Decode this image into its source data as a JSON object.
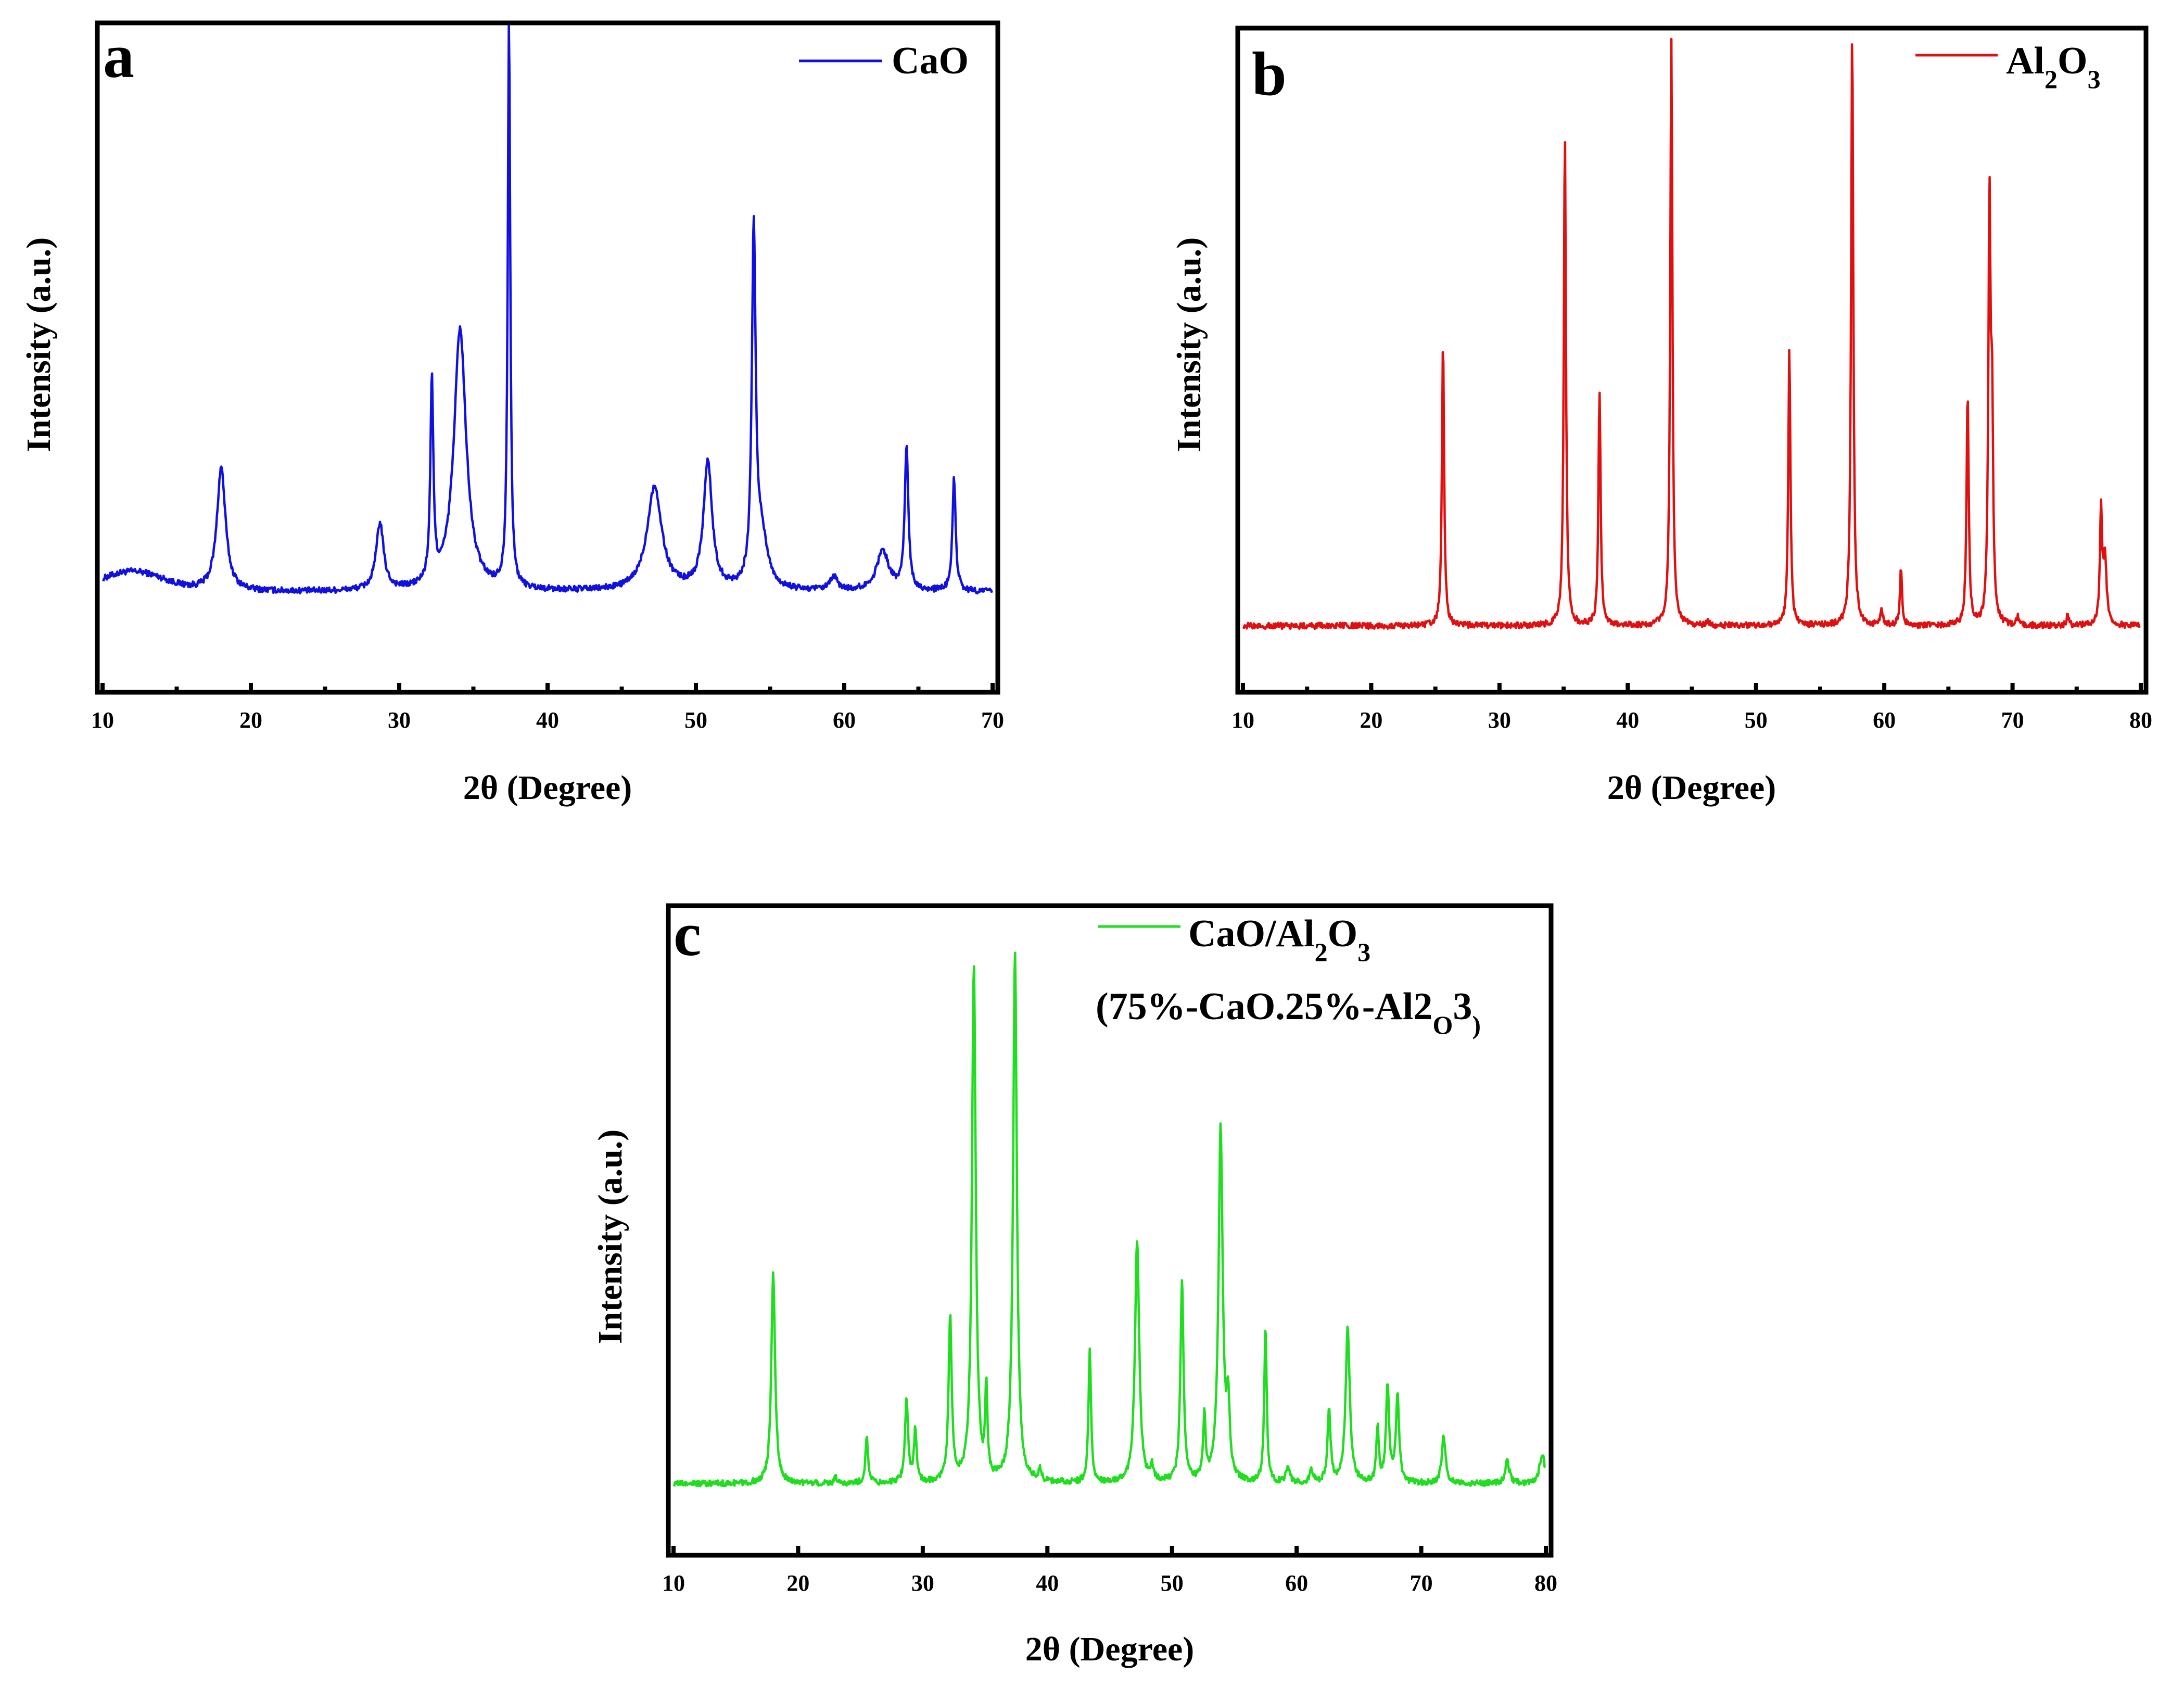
{
  "figure": {
    "panels": [
      "a",
      "b",
      "c"
    ]
  },
  "chart_data": [
    {
      "type": "line",
      "panel_label": "a",
      "xlabel": "2θ (Degree)",
      "ylabel": "Intensity (a.u.)",
      "xlim": [
        10,
        70
      ],
      "ylim": [
        0,
        100
      ],
      "major_ticks": [
        10,
        20,
        30,
        40,
        50,
        60,
        70
      ],
      "minor_ticks": [
        15,
        25,
        35,
        45,
        55,
        65
      ],
      "tick_labels": [
        "10",
        "20",
        "30",
        "40",
        "50",
        "60",
        "70"
      ],
      "series": [
        {
          "name": "CaO",
          "color": "#1010e0",
          "baseline": 15,
          "background_hump": {
            "center": 12,
            "height": 3,
            "width": 3
          },
          "peaks": [
            {
              "x": 18.0,
              "h": 18.5,
              "w": 0.35
            },
            {
              "x": 28.7,
              "h": 10,
              "w": 0.3
            },
            {
              "x": 32.2,
              "h": 30,
              "w": 0.12
            },
            {
              "x": 34.1,
              "h": 39,
              "w": 0.5
            },
            {
              "x": 37.4,
              "h": 85,
              "w": 0.1
            },
            {
              "x": 47.2,
              "h": 15.5,
              "w": 0.6
            },
            {
              "x": 50.8,
              "h": 19,
              "w": 0.35
            },
            {
              "x": 53.9,
              "h": 52,
              "w": 0.15
            },
            {
              "x": 54.4,
              "h": 8,
              "w": 0.5
            },
            {
              "x": 59.3,
              "h": 2,
              "w": 0.3
            },
            {
              "x": 62.6,
              "h": 6,
              "w": 0.5
            },
            {
              "x": 64.2,
              "h": 21,
              "w": 0.15
            },
            {
              "x": 67.4,
              "h": 17,
              "w": 0.13
            }
          ],
          "legend": {
            "label": "CaO",
            "subscripts": [],
            "placement": "top-right"
          }
        }
      ]
    },
    {
      "type": "line",
      "panel_label": "b",
      "xlabel": "2θ (Degree)",
      "ylabel": "Intensity (a.u.)",
      "xlim": [
        10,
        80
      ],
      "ylim": [
        0,
        100
      ],
      "major_ticks": [
        10,
        20,
        30,
        40,
        50,
        60,
        70,
        80
      ],
      "minor_ticks": [
        15,
        25,
        35,
        45,
        55,
        65,
        75
      ],
      "tick_labels": [
        "10",
        "20",
        "30",
        "40",
        "50",
        "60",
        "70",
        "80"
      ],
      "series": [
        {
          "name": "Al2O3",
          "color": "#e01010",
          "baseline": 10,
          "background_hump": null,
          "peaks": [
            {
              "x": 25.6,
              "h": 43,
              "w": 0.1
            },
            {
              "x": 35.1,
              "h": 74,
              "w": 0.1
            },
            {
              "x": 37.8,
              "h": 35.5,
              "w": 0.1
            },
            {
              "x": 43.4,
              "h": 88,
              "w": 0.1
            },
            {
              "x": 46.2,
              "h": 0.8,
              "w": 0.1
            },
            {
              "x": 52.6,
              "h": 42,
              "w": 0.1
            },
            {
              "x": 57.5,
              "h": 90,
              "w": 0.1
            },
            {
              "x": 59.8,
              "h": 2.5,
              "w": 0.1
            },
            {
              "x": 61.3,
              "h": 8.5,
              "w": 0.1
            },
            {
              "x": 66.5,
              "h": 35,
              "w": 0.1
            },
            {
              "x": 68.2,
              "h": 62,
              "w": 0.1
            },
            {
              "x": 68.4,
              "h": 30,
              "w": 0.1
            },
            {
              "x": 70.4,
              "h": 1.2,
              "w": 0.1
            },
            {
              "x": 74.3,
              "h": 1.5,
              "w": 0.1
            },
            {
              "x": 76.9,
              "h": 17,
              "w": 0.1
            },
            {
              "x": 77.2,
              "h": 10,
              "w": 0.15
            }
          ],
          "legend": {
            "label": "Al2O3",
            "subscripts": [
              2,
              4
            ],
            "placement": "top-right"
          }
        }
      ]
    },
    {
      "type": "line",
      "panel_label": "c",
      "xlabel": "2θ (Degree)",
      "ylabel": "Intensity (a.u.)",
      "xlim": [
        10,
        80
      ],
      "ylim": [
        0,
        100
      ],
      "major_ticks": [
        10,
        20,
        30,
        40,
        50,
        60,
        70,
        80
      ],
      "minor_ticks": [],
      "tick_labels": [
        "10",
        "20",
        "30",
        "40",
        "50",
        "60",
        "70",
        "80"
      ],
      "series": [
        {
          "name": "CaO/Al2O3",
          "color": "#20dd20",
          "baseline": 11,
          "background_hump": null,
          "peaks": [
            {
              "x": 18.0,
              "h": 32.5,
              "w": 0.18
            },
            {
              "x": 23.0,
              "h": 0.8,
              "w": 0.15
            },
            {
              "x": 25.5,
              "h": 7.5,
              "w": 0.12
            },
            {
              "x": 28.7,
              "h": 13,
              "w": 0.15
            },
            {
              "x": 29.4,
              "h": 8,
              "w": 0.12
            },
            {
              "x": 32.2,
              "h": 25.5,
              "w": 0.15
            },
            {
              "x": 34.1,
              "h": 80,
              "w": 0.18
            },
            {
              "x": 35.1,
              "h": 14,
              "w": 0.1
            },
            {
              "x": 37.4,
              "h": 82,
              "w": 0.18
            },
            {
              "x": 39.4,
              "h": 2,
              "w": 0.12
            },
            {
              "x": 43.4,
              "h": 21,
              "w": 0.12
            },
            {
              "x": 47.2,
              "h": 37.5,
              "w": 0.2
            },
            {
              "x": 48.4,
              "h": 2.2,
              "w": 0.15
            },
            {
              "x": 50.8,
              "h": 31,
              "w": 0.15
            },
            {
              "x": 52.6,
              "h": 10,
              "w": 0.12
            },
            {
              "x": 53.9,
              "h": 54.5,
              "w": 0.2
            },
            {
              "x": 54.5,
              "h": 11,
              "w": 0.15
            },
            {
              "x": 57.5,
              "h": 24,
              "w": 0.12
            },
            {
              "x": 59.3,
              "h": 2.8,
              "w": 0.15
            },
            {
              "x": 61.2,
              "h": 2,
              "w": 0.15
            },
            {
              "x": 62.6,
              "h": 11,
              "w": 0.15
            },
            {
              "x": 64.1,
              "h": 24,
              "w": 0.2
            },
            {
              "x": 66.5,
              "h": 8.5,
              "w": 0.12
            },
            {
              "x": 67.3,
              "h": 15,
              "w": 0.15
            },
            {
              "x": 68.1,
              "h": 13.5,
              "w": 0.15
            },
            {
              "x": 71.8,
              "h": 7.5,
              "w": 0.18
            },
            {
              "x": 76.9,
              "h": 3.5,
              "w": 0.2
            },
            {
              "x": 79.7,
              "h": 4.5,
              "w": 0.25
            }
          ],
          "legend": {
            "label": "CaO/Al2O3",
            "subscripts": [
              6,
              8
            ],
            "label2": "(75%-CaO.25%-Al2O3)",
            "subscripts2": [
              16,
              18
            ],
            "placement": "top-right"
          }
        }
      ]
    }
  ]
}
